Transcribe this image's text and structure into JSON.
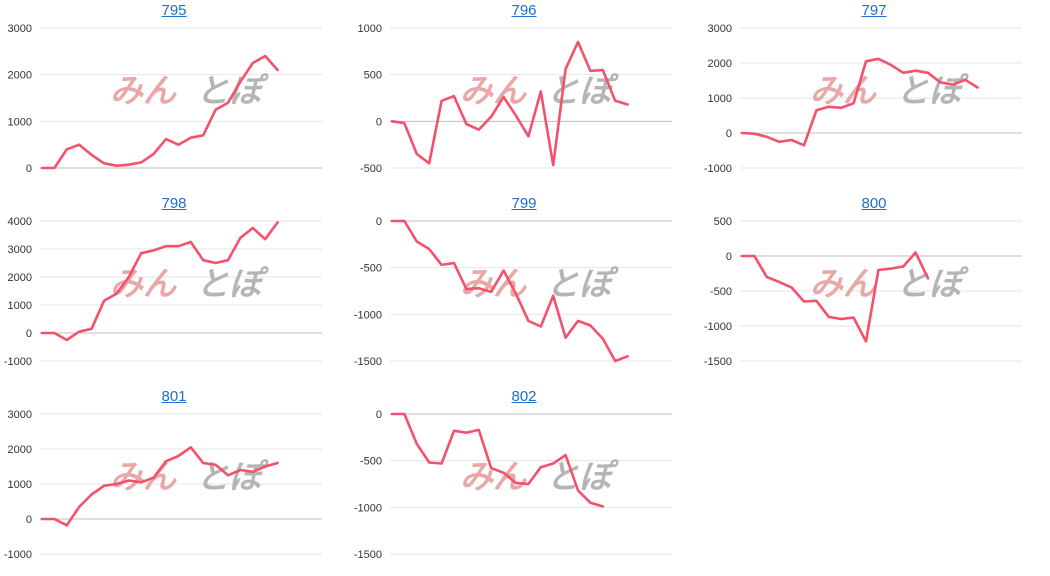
{
  "colors": {
    "line": "#f4516c",
    "grid": "#e6e6e6",
    "zero_line": "#bdbdbd",
    "title": "#1a6fd0",
    "watermark_left": "#e9a7a7",
    "watermark_right": "#b5b5b5"
  },
  "watermark": {
    "left": "みん",
    "right": "とぽ"
  },
  "chart_data": [
    {
      "type": "line",
      "title": "795",
      "ylim": [
        0,
        3000
      ],
      "yticks": [
        0,
        1000,
        2000,
        3000
      ],
      "values": [
        0,
        0,
        400,
        500,
        280,
        100,
        50,
        70,
        120,
        300,
        620,
        500,
        650,
        700,
        1250,
        1400,
        1850,
        2250,
        2400,
        2100
      ]
    },
    {
      "type": "line",
      "title": "796",
      "ylim": [
        -500,
        1000
      ],
      "yticks": [
        -500,
        0,
        500,
        1000
      ],
      "values": [
        0,
        -20,
        -350,
        -450,
        220,
        270,
        -30,
        -90,
        50,
        260,
        60,
        -160,
        320,
        -470,
        560,
        850,
        540,
        550,
        220,
        180
      ]
    },
    {
      "type": "line",
      "title": "797",
      "ylim": [
        -1000,
        3000
      ],
      "yticks": [
        -1000,
        0,
        1000,
        2000,
        3000
      ],
      "values": [
        0,
        -20,
        -110,
        -250,
        -200,
        -350,
        650,
        750,
        720,
        850,
        2050,
        2120,
        1950,
        1720,
        1780,
        1720,
        1450,
        1380,
        1520,
        1300
      ]
    },
    {
      "type": "line",
      "title": "798",
      "ylim": [
        -1000,
        4000
      ],
      "yticks": [
        -1000,
        0,
        1000,
        2000,
        3000,
        4000
      ],
      "values": [
        0,
        0,
        -250,
        50,
        150,
        1150,
        1400,
        2000,
        2850,
        2950,
        3100,
        3100,
        3250,
        2600,
        2500,
        2600,
        3400,
        3750,
        3350,
        3950
      ]
    },
    {
      "type": "line",
      "title": "799",
      "ylim": [
        -1500,
        0
      ],
      "yticks": [
        -1500,
        -1000,
        -500,
        0
      ],
      "values": [
        0,
        0,
        -220,
        -300,
        -470,
        -450,
        -730,
        -720,
        -760,
        -530,
        -780,
        -1070,
        -1130,
        -800,
        -1250,
        -1070,
        -1120,
        -1260,
        -1500,
        -1450
      ]
    },
    {
      "type": "line",
      "title": "800",
      "ylim": [
        -1500,
        500
      ],
      "yticks": [
        -1500,
        -1000,
        -500,
        0,
        500
      ],
      "values": [
        0,
        0,
        -300,
        -370,
        -450,
        -650,
        -640,
        -870,
        -900,
        -880,
        -1220,
        -200,
        -180,
        -150,
        50,
        -320
      ]
    },
    {
      "type": "line",
      "title": "801",
      "ylim": [
        -1000,
        3000
      ],
      "yticks": [
        -1000,
        0,
        1000,
        2000,
        3000
      ],
      "values": [
        0,
        0,
        -180,
        350,
        700,
        950,
        1000,
        1100,
        1050,
        1180,
        1650,
        1800,
        2050,
        1600,
        1550,
        1250,
        1400,
        1350,
        1500,
        1600
      ]
    },
    {
      "type": "line",
      "title": "802",
      "ylim": [
        -1500,
        0
      ],
      "yticks": [
        -1500,
        -1000,
        -500,
        0
      ],
      "values": [
        0,
        0,
        -320,
        -520,
        -530,
        -180,
        -200,
        -170,
        -580,
        -630,
        -740,
        -750,
        -570,
        -530,
        -440,
        -820,
        -950,
        -990
      ]
    }
  ]
}
